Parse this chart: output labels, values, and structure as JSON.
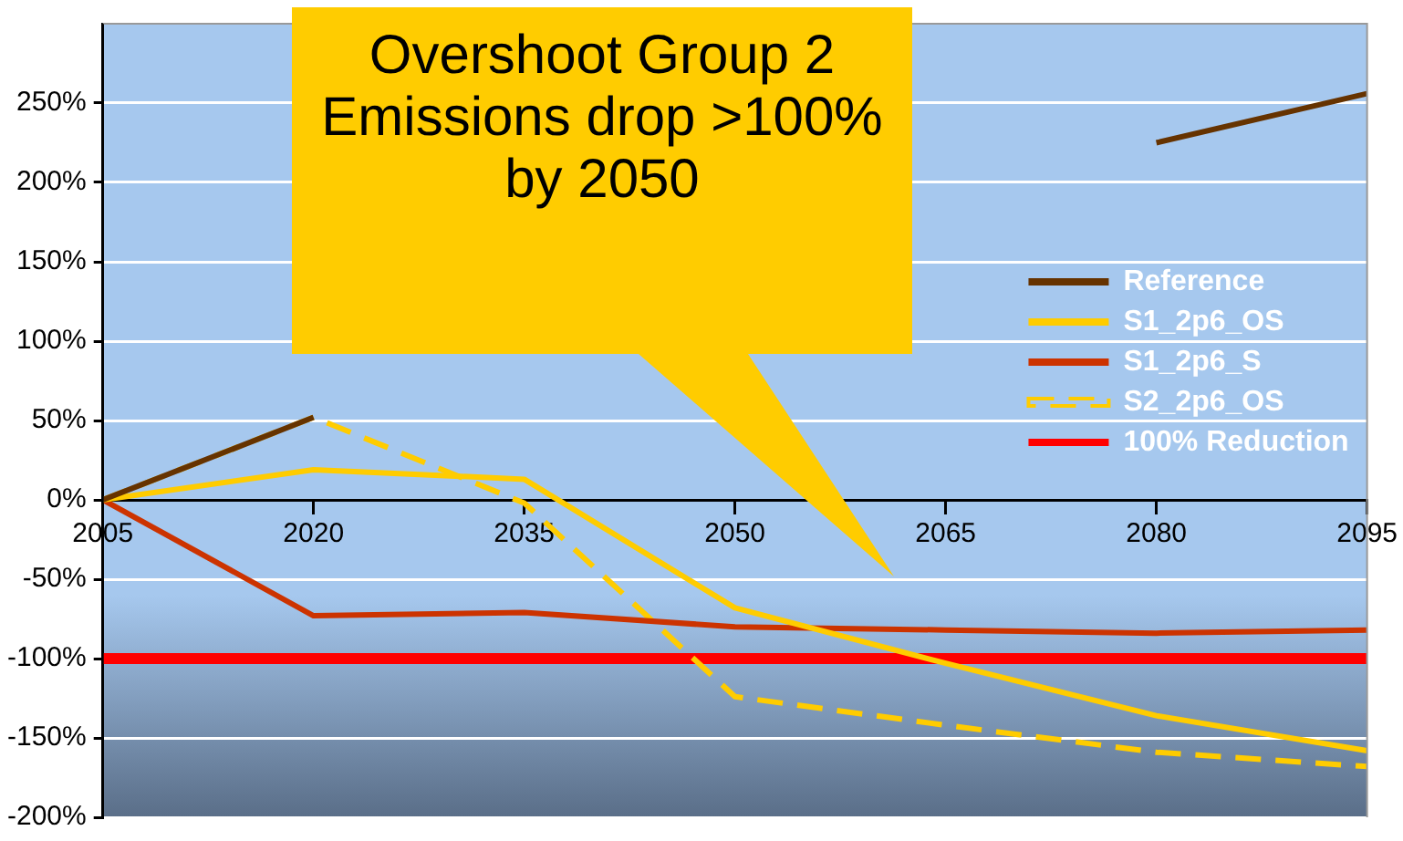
{
  "chart_data": {
    "type": "line",
    "annotations": [
      "Overshoot Group 2 Emissions drop >100% by 2050"
    ],
    "x": [
      2005,
      2020,
      2035,
      2050,
      2065,
      2080,
      2095
    ],
    "series": [
      {
        "name": "Reference",
        "color": "#663300",
        "values": [
          0,
          52,
          null,
          null,
          null,
          225,
          256
        ]
      },
      {
        "name": "S1_2p6_OS",
        "color": "#ffcc00",
        "values": [
          0,
          19,
          13,
          -68,
          -103,
          -136,
          -158
        ]
      },
      {
        "name": "S1_2p6_S",
        "color": "#cc3300",
        "values": [
          0,
          -73,
          -71,
          -80,
          -82,
          -84,
          -82
        ]
      },
      {
        "name": "S2_2p6_OS",
        "color": "#ffcc00",
        "line_style": "dashed",
        "values": [
          0,
          52,
          -2,
          -124,
          -142,
          -159,
          -168
        ]
      },
      {
        "name": "100% Reduction",
        "color": "#ff0000",
        "values": [
          -100,
          -100,
          -100,
          -100,
          -100,
          -100,
          -100
        ]
      }
    ],
    "xlim": [
      2005,
      2095
    ],
    "xticks": [
      2005,
      2020,
      2035,
      2050,
      2065,
      2080,
      2095
    ],
    "ylim": [
      -200,
      300
    ],
    "yticks": [
      {
        "value": -200,
        "label": "-200%"
      },
      {
        "value": -150,
        "label": "-150%"
      },
      {
        "value": -100,
        "label": "-100%"
      },
      {
        "value": -50,
        "label": "-50%"
      },
      {
        "value": 0,
        "label": "0%"
      },
      {
        "value": 50,
        "label": "50%"
      },
      {
        "value": 100,
        "label": "100%"
      },
      {
        "value": 150,
        "label": "150%"
      },
      {
        "value": 200,
        "label": "200%"
      },
      {
        "value": 250,
        "label": "250%"
      }
    ],
    "grid": "y",
    "legend": "right",
    "marker": "none",
    "line_style": "solid"
  }
}
